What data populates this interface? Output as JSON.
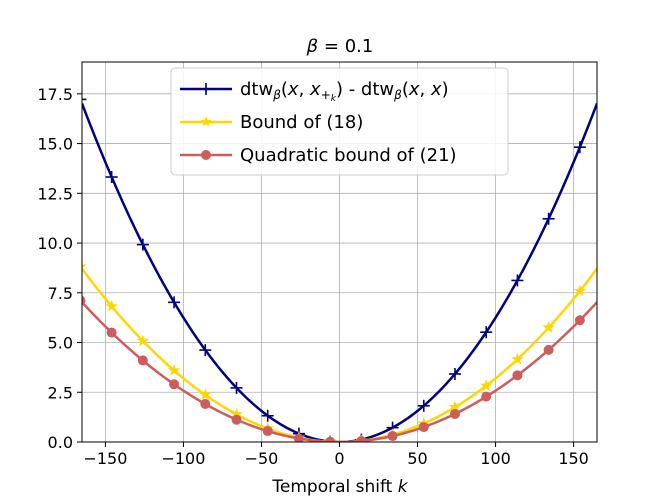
{
  "chart_data": {
    "type": "line",
    "title_prefix": "β",
    "title_suffix": " = 0.1",
    "xlabel_prefix": "Temporal shift ",
    "xlabel_var": "k",
    "xlim": [
      -165,
      165
    ],
    "ylim": [
      0,
      19.1
    ],
    "xticks": [
      -150,
      -100,
      -50,
      0,
      50,
      100,
      150
    ],
    "xtick_labels": [
      "−150",
      "−100",
      "−50",
      "0",
      "50",
      "100",
      "150"
    ],
    "yticks": [
      0,
      2.5,
      5,
      7.5,
      10,
      12.5,
      15,
      17.5
    ],
    "ytick_labels": [
      "0.0",
      "2.5",
      "5.0",
      "7.5",
      "10.0",
      "12.5",
      "15.0",
      "17.5"
    ],
    "grid": true,
    "legend_position": "upper-center",
    "series": [
      {
        "name": "dtw_β(x, x_{+k}) - dtw_β(x, x)",
        "legend_text": {
          "p1": "dtw",
          "p1_sub": "β",
          "p2": "(",
          "p2_italic": "x",
          "p3": ", ",
          "p3_italic": "x",
          "p3_sub": "+",
          "p3_subsub": "k",
          "p4": ") - dtw",
          "p4_sub": "β",
          "p5": "(",
          "p5_italic": "x",
          "p6": ", ",
          "p6_italic": "x",
          "p7": ")"
        },
        "color": "#000080",
        "marker": "plus",
        "curve_coef": 0.000625,
        "marker_x": [
          -166,
          -146,
          -126,
          -106,
          -86,
          -66,
          -46,
          -26,
          -6,
          14,
          34,
          54,
          74,
          94,
          114,
          134,
          154
        ],
        "marker_y": [
          17.22,
          13.32,
          9.92,
          7.02,
          4.62,
          2.72,
          1.32,
          0.42,
          0.02,
          0.12,
          0.72,
          1.82,
          3.42,
          5.52,
          8.12,
          11.22,
          14.82
        ]
      },
      {
        "name": "Bound of (18)",
        "color": "#FFD700",
        "marker": "star",
        "curve_coef": 0.00032,
        "marker_x": [
          -166,
          -146,
          -126,
          -106,
          -86,
          -66,
          -46,
          -26,
          -6,
          14,
          34,
          54,
          74,
          94,
          114,
          134,
          154
        ],
        "marker_y": [
          8.82,
          6.82,
          5.08,
          3.6,
          2.37,
          1.39,
          0.68,
          0.22,
          0.01,
          0.06,
          0.37,
          0.93,
          1.75,
          2.83,
          4.16,
          5.75,
          7.59
        ]
      },
      {
        "name": "Quadratic bound of (21)",
        "color": "#CD5C5C",
        "marker": "circle",
        "curve_coef": 0.000258,
        "marker_x": [
          -166,
          -146,
          -126,
          -106,
          -86,
          -66,
          -46,
          -26,
          -6,
          14,
          34,
          54,
          74,
          94,
          114,
          134,
          154
        ],
        "marker_y": [
          7.11,
          5.5,
          4.1,
          2.9,
          1.91,
          1.12,
          0.55,
          0.17,
          0.01,
          0.05,
          0.3,
          0.75,
          1.41,
          2.28,
          3.35,
          4.63,
          6.12
        ]
      }
    ]
  }
}
